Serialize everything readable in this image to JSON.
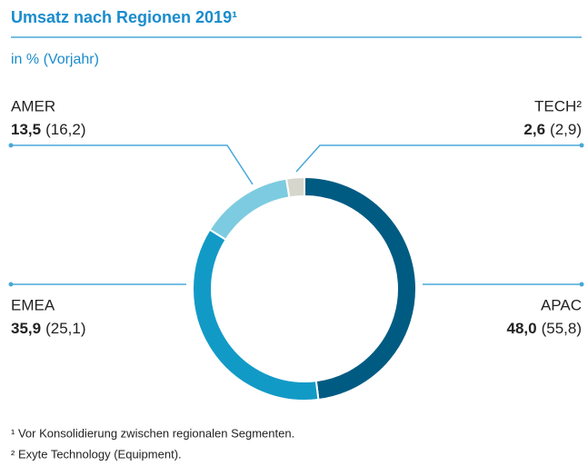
{
  "chart_data": {
    "type": "donut",
    "title": "Umsatz nach Regionen 2019¹",
    "subtitle": "in % (Vorjahr)",
    "categories": [
      "APAC",
      "EMEA",
      "AMER",
      "TECH²"
    ],
    "values": [
      48.0,
      35.9,
      13.5,
      2.6
    ],
    "value_labels": [
      "48,0",
      "35,9",
      "13,5",
      "2,6"
    ],
    "prev_values": [
      55.8,
      25.1,
      16.2,
      2.9
    ],
    "prev_value_labels": [
      "(55,8)",
      "(25,1)",
      "(16,2)",
      "(2,9)"
    ],
    "colors": [
      "#005b82",
      "#129ac6",
      "#7dcbe0",
      "#d6d6cc"
    ],
    "footnotes": [
      "¹ Vor Konsolidierung zwischen regionalen Segmenten.",
      "² Exyte Technology (Equipment)."
    ]
  }
}
